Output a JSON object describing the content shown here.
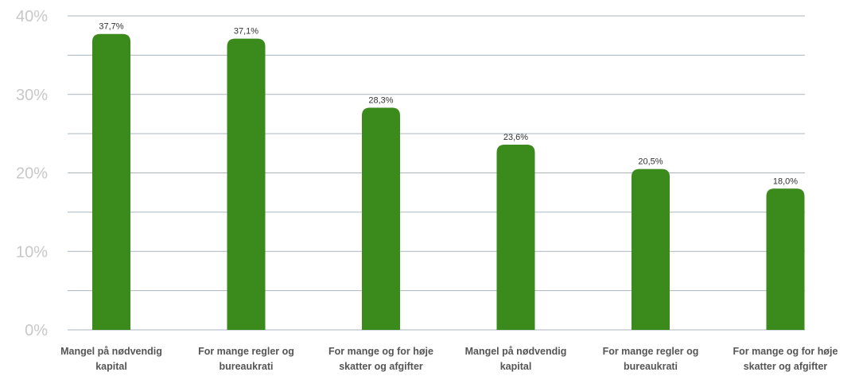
{
  "chart_data": {
    "type": "bar",
    "categories": [
      [
        "Mangel på nødvendig",
        "kapital"
      ],
      [
        "For mange regler og",
        "bureaukrati"
      ],
      [
        "For mange og for høje",
        "skatter og afgifter"
      ],
      [
        "Mangel på nødvendig",
        "kapital"
      ],
      [
        "For mange regler og",
        "bureaukrati"
      ],
      [
        "For mange og for høje",
        "skatter og afgifter"
      ]
    ],
    "values": [
      37.7,
      37.1,
      28.3,
      23.6,
      20.5,
      18.0
    ],
    "value_labels": [
      "37,7%",
      "37,1%",
      "28,3%",
      "23,6%",
      "20,5%",
      "18,0%"
    ],
    "ylim": [
      0,
      40
    ],
    "yticks": [
      {
        "value": 0,
        "label": "0%"
      },
      {
        "value": 10,
        "label": "10%"
      },
      {
        "value": 20,
        "label": "20%"
      },
      {
        "value": 30,
        "label": "30%"
      },
      {
        "value": 40,
        "label": "40%"
      }
    ],
    "gridlines": [
      5,
      10,
      15,
      20,
      25,
      30,
      35,
      40
    ],
    "grid": true,
    "title": "",
    "xlabel": "",
    "ylabel": "",
    "bar_color": "#3a8a1c",
    "grid_color": "#a9b6c0",
    "tick_color": "#c8c8c8"
  }
}
